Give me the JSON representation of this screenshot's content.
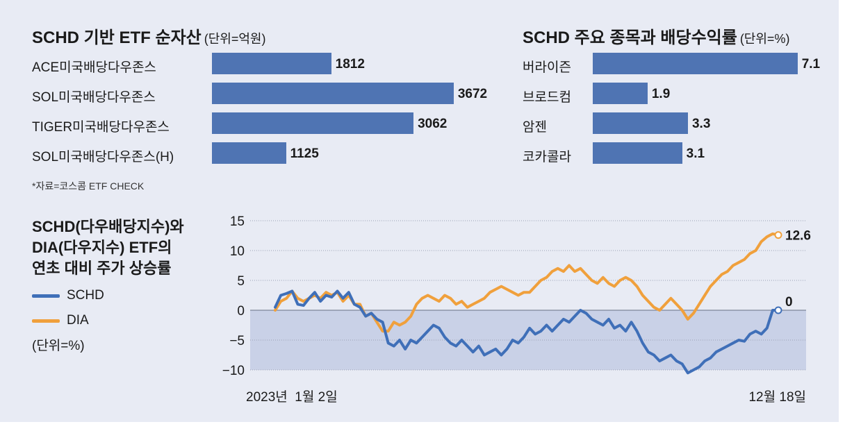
{
  "colors": {
    "background": "#e8ebf4",
    "bar": "#4f74b3",
    "schd_line": "#3f6fb8",
    "dia_line": "#f0a03c",
    "negative_area": "#c3cde4"
  },
  "bar_chart_left": {
    "title": "SCHD 기반 ETF 순자산",
    "unit": "(단위=억원)",
    "source": "*자료=코스콤 ETF CHECK"
  },
  "bar_chart_right": {
    "title": "SCHD 주요 종목과 배당수익률",
    "unit": "(단위=%)"
  },
  "line_chart": {
    "title_lines": [
      "SCHD(다우배당지수)와",
      "DIA(다우지수) ETF의",
      "연초 대비 주가 상승률"
    ],
    "legend": [
      "SCHD",
      "DIA"
    ],
    "unit": "(단위=%)"
  },
  "chart_data": [
    {
      "type": "bar",
      "orientation": "horizontal",
      "title": "SCHD 기반 ETF 순자산",
      "unit": "억원",
      "categories": [
        "ACE미국배당다우존스",
        "SOL미국배당다우존스",
        "TIGER미국배당다우존스",
        "SOL미국배당다우존스(H)"
      ],
      "values": [
        1812,
        3672,
        3062,
        1125
      ],
      "xlim": [
        0,
        3800
      ]
    },
    {
      "type": "bar",
      "orientation": "horizontal",
      "title": "SCHD 주요 종목과 배당수익률",
      "unit": "%",
      "categories": [
        "버라이즌",
        "브로드컴",
        "암젠",
        "코카콜라"
      ],
      "values": [
        7.1,
        1.9,
        3.3,
        3.1
      ],
      "xlim": [
        0,
        7.3
      ]
    },
    {
      "type": "line",
      "title": "SCHD(다우배당지수)와 DIA(다우지수) ETF의 연초 대비 주가 상승률",
      "x_start_label": "2023년  1월 2일",
      "x_end_label": "12월 18일",
      "ylim": [
        -10,
        15
      ],
      "yticks": [
        "15",
        "10",
        "5",
        "0",
        "−5",
        "−10"
      ],
      "grid": true,
      "end_labels": {
        "DIA": "12.6",
        "SCHD": "0"
      },
      "series": [
        {
          "name": "SCHD",
          "values": [
            0.5,
            2.5,
            2.8,
            3.2,
            1.0,
            0.8,
            2.0,
            3.0,
            1.5,
            2.5,
            2.2,
            3.2,
            2.0,
            3.0,
            1.0,
            0.5,
            -1.0,
            -0.5,
            -1.5,
            -2.0,
            -5.5,
            -6.0,
            -5.0,
            -6.5,
            -5.0,
            -5.5,
            -4.5,
            -3.5,
            -2.5,
            -3.0,
            -4.5,
            -5.5,
            -6.0,
            -5.0,
            -6.0,
            -7.0,
            -6.0,
            -7.5,
            -7.0,
            -6.5,
            -7.5,
            -6.5,
            -5.0,
            -5.5,
            -4.5,
            -3.0,
            -4.0,
            -3.5,
            -2.5,
            -3.5,
            -2.5,
            -1.5,
            -2.0,
            -1.0,
            0.0,
            -0.5,
            -1.5,
            -2.0,
            -2.5,
            -1.5,
            -3.0,
            -2.5,
            -3.5,
            -2.0,
            -3.5,
            -5.5,
            -7.0,
            -7.5,
            -8.5,
            -8.0,
            -7.5,
            -8.5,
            -9.0,
            -10.5,
            -10.0,
            -9.5,
            -8.5,
            -8.0,
            -7.0,
            -6.5,
            -6.0,
            -5.5,
            -5.0,
            -5.2,
            -4.0,
            -3.5,
            -4.0,
            -3.0,
            0.0,
            0.0
          ]
        },
        {
          "name": "DIA",
          "values": [
            0.0,
            1.5,
            2.0,
            3.2,
            2.0,
            1.5,
            2.0,
            2.5,
            2.0,
            3.0,
            2.5,
            3.0,
            1.5,
            2.5,
            1.0,
            1.0,
            -1.0,
            -0.5,
            -2.0,
            -3.5,
            -3.5,
            -2.0,
            -2.5,
            -2.0,
            -1.0,
            1.0,
            2.0,
            2.5,
            2.0,
            1.5,
            2.5,
            2.0,
            1.0,
            1.5,
            0.5,
            1.0,
            1.5,
            2.0,
            3.0,
            3.5,
            4.0,
            3.5,
            3.0,
            2.5,
            3.0,
            3.0,
            4.0,
            5.0,
            5.5,
            6.5,
            7.0,
            6.5,
            7.5,
            6.5,
            7.0,
            6.0,
            5.0,
            4.5,
            5.5,
            4.5,
            4.0,
            5.0,
            5.5,
            5.0,
            4.0,
            2.5,
            1.5,
            0.5,
            0.0,
            1.0,
            2.0,
            1.0,
            0.0,
            -1.5,
            -0.5,
            1.0,
            2.5,
            4.0,
            5.0,
            6.0,
            6.5,
            7.5,
            8.0,
            8.5,
            9.5,
            10.0,
            11.5,
            12.3,
            12.8,
            12.6
          ]
        }
      ]
    }
  ]
}
